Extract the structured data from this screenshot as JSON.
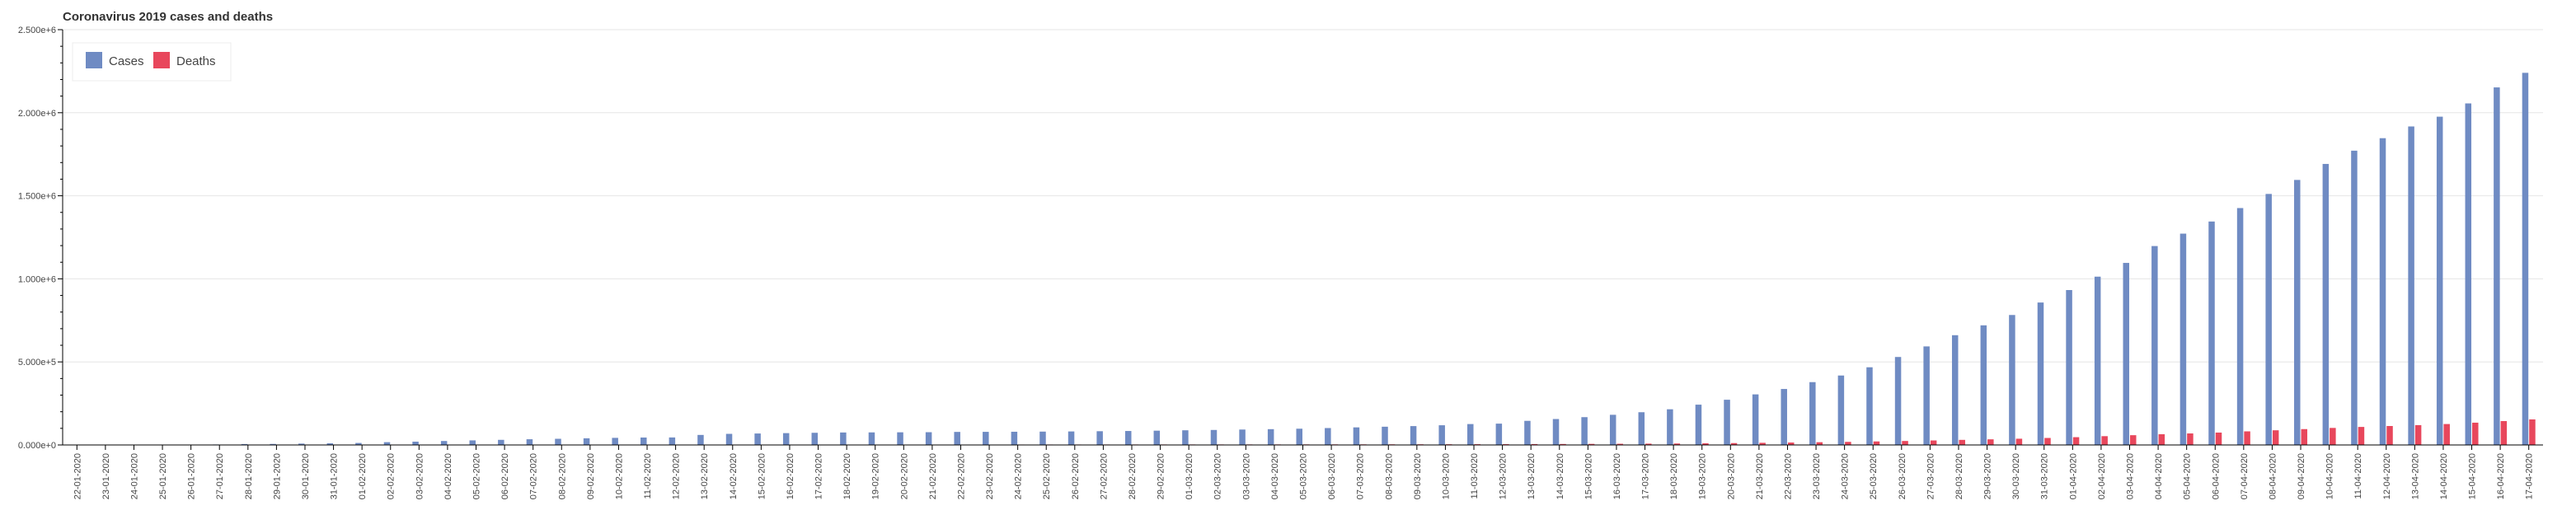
{
  "chart_data": {
    "type": "bar",
    "title": "Coronavirus 2019 cases and deaths",
    "xlabel": "",
    "ylabel": "",
    "ylim": [
      0,
      2500000
    ],
    "yticks": [
      0,
      500000,
      1000000,
      1500000,
      2000000,
      2500000
    ],
    "ytick_labels": [
      "0.000e+0",
      "5.000e+5",
      "1.000e+6",
      "1.500e+6",
      "2.000e+6",
      "2.500e+6"
    ],
    "grid": true,
    "legend_position": "top-left",
    "colors": {
      "cases": "#6f8bc3",
      "deaths": "#e8475c"
    },
    "categories": [
      "22-01-2020",
      "23-01-2020",
      "24-01-2020",
      "25-01-2020",
      "26-01-2020",
      "27-01-2020",
      "28-01-2020",
      "29-01-2020",
      "30-01-2020",
      "31-01-2020",
      "01-02-2020",
      "02-02-2020",
      "03-02-2020",
      "04-02-2020",
      "05-02-2020",
      "06-02-2020",
      "07-02-2020",
      "08-02-2020",
      "09-02-2020",
      "10-02-2020",
      "11-02-2020",
      "12-02-2020",
      "13-02-2020",
      "14-02-2020",
      "15-02-2020",
      "16-02-2020",
      "17-02-2020",
      "18-02-2020",
      "19-02-2020",
      "20-02-2020",
      "21-02-2020",
      "22-02-2020",
      "23-02-2020",
      "24-02-2020",
      "25-02-2020",
      "26-02-2020",
      "27-02-2020",
      "28-02-2020",
      "29-02-2020",
      "01-03-2020",
      "02-03-2020",
      "03-03-2020",
      "04-03-2020",
      "05-03-2020",
      "06-03-2020",
      "07-03-2020",
      "08-03-2020",
      "09-03-2020",
      "10-03-2020",
      "11-03-2020",
      "12-03-2020",
      "13-03-2020",
      "14-03-2020",
      "15-03-2020",
      "16-03-2020",
      "17-03-2020",
      "18-03-2020",
      "19-03-2020",
      "20-03-2020",
      "21-03-2020",
      "22-03-2020",
      "23-03-2020",
      "24-03-2020",
      "25-03-2020",
      "26-03-2020",
      "27-03-2020",
      "28-03-2020",
      "29-03-2020",
      "30-03-2020",
      "31-03-2020",
      "01-04-2020",
      "02-04-2020",
      "03-04-2020",
      "04-04-2020",
      "05-04-2020",
      "06-04-2020",
      "07-04-2020",
      "08-04-2020",
      "09-04-2020",
      "10-04-2020",
      "11-04-2020",
      "12-04-2020",
      "13-04-2020",
      "14-04-2020",
      "15-04-2020",
      "16-04-2020",
      "17-04-2020"
    ],
    "series": [
      {
        "name": "Cases",
        "values": [
          555,
          654,
          941,
          1434,
          2118,
          2927,
          5578,
          6166,
          8234,
          9927,
          12038,
          16787,
          19881,
          23892,
          27635,
          30817,
          34391,
          37120,
          40150,
          42762,
          44802,
          45221,
          60368,
          66885,
          69030,
          71224,
          73258,
          75136,
          75639,
          76197,
          76819,
          78572,
          78958,
          79561,
          80406,
          81388,
          82746,
          84112,
          86011,
          88369,
          90306,
          92840,
          95120,
          97886,
          101801,
          105847,
          109821,
          113590,
          118620,
          125875,
          128352,
          145205,
          156101,
          167454,
          181574,
          197102,
          214821,
          242570,
          272208,
          304507,
          336953,
          378235,
          418045,
          467653,
          529591,
          593291,
          660706,
          720117,
          782365,
          857487,
          932605,
          1013157,
          1095917,
          1197405,
          1272115,
          1345101,
          1426096,
          1511104,
          1595350,
          1691719,
          1771514,
          1846680,
          1917320,
          1976192,
          2056054,
          2152437,
          2240190
        ]
      },
      {
        "name": "Deaths",
        "values": [
          17,
          18,
          26,
          42,
          56,
          82,
          131,
          133,
          171,
          213,
          259,
          362,
          426,
          492,
          564,
          634,
          719,
          806,
          906,
          1013,
          1113,
          1118,
          1371,
          1523,
          1666,
          1770,
          1868,
          2007,
          2122,
          2247,
          2251,
          2458,
          2469,
          2629,
          2708,
          2770,
          2814,
          2872,
          2941,
          2996,
          3085,
          3160,
          3254,
          3348,
          3460,
          3558,
          3802,
          3988,
          4262,
          4615,
          4720,
          5404,
          5819,
          6440,
          7126,
          7905,
          8733,
          9867,
          11299,
          12973,
          14651,
          16505,
          18625,
          21181,
          23970,
          27198,
          30652,
          33925,
          37582,
          42107,
          46809,
          52983,
          58787,
          64606,
          69374,
          74565,
          81865,
          88338,
          95455,
          102525,
          108503,
          114091,
          119482,
          125984,
          134177,
          143800,
          153822
        ]
      }
    ],
    "legend": [
      {
        "label": "Cases",
        "color_key": "cases"
      },
      {
        "label": "Deaths",
        "color_key": "deaths"
      }
    ]
  }
}
